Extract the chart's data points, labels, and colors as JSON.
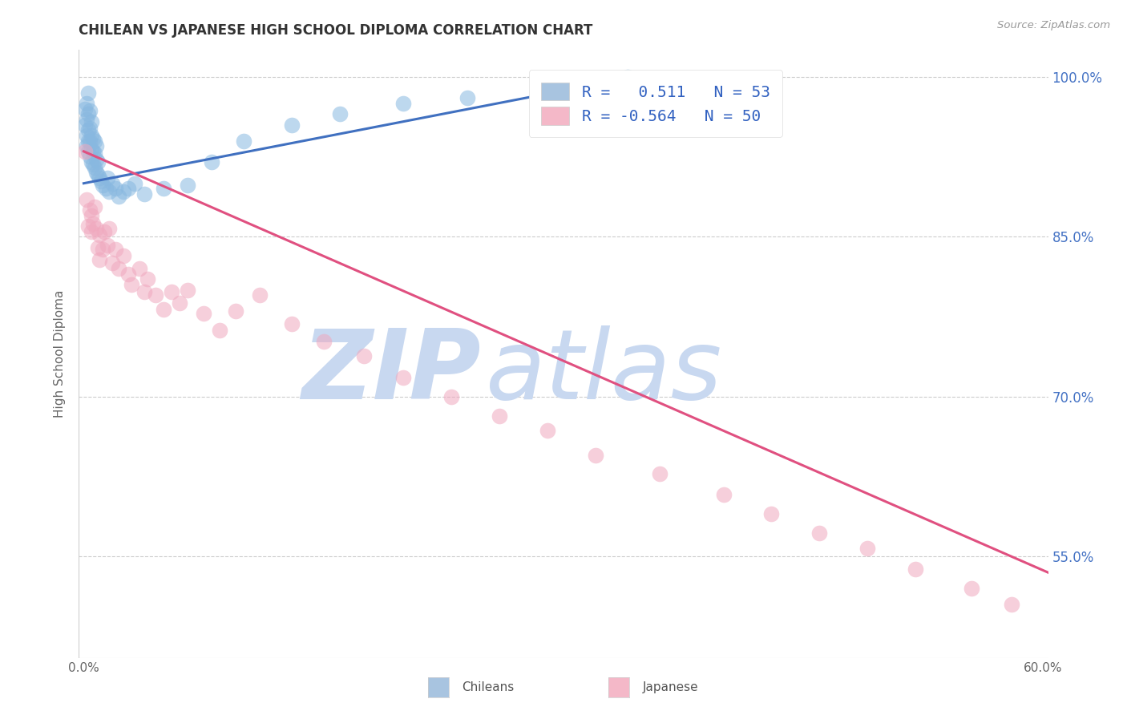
{
  "title": "CHILEAN VS JAPANESE HIGH SCHOOL DIPLOMA CORRELATION CHART",
  "source": "Source: ZipAtlas.com",
  "ylabel": "High School Diploma",
  "xlim": [
    -0.003,
    0.603
  ],
  "ylim": [
    0.455,
    1.025
  ],
  "xticks": [
    0.0,
    0.1,
    0.2,
    0.3,
    0.4,
    0.5,
    0.6
  ],
  "xticklabels": [
    "0.0%",
    "",
    "",
    "",
    "",
    "",
    "60.0%"
  ],
  "yticks": [
    0.55,
    0.7,
    0.85,
    1.0
  ],
  "yticklabels": [
    "55.0%",
    "70.0%",
    "85.0%",
    "100.0%"
  ],
  "legend_R1": "R =   0.511",
  "legend_N1": "N = 53",
  "legend_R2": "R = -0.564",
  "legend_N2": "N = 50",
  "legend_color1": "#a8c4e0",
  "legend_color2": "#f4b8c8",
  "legend_text_color": "#3060c0",
  "chilean_color": "#88b8e0",
  "japanese_color": "#f0a8be",
  "blue_line_color": "#4070c0",
  "pink_line_color": "#e05080",
  "watermark_zip": "ZIP",
  "watermark_atlas": "atlas",
  "watermark_color": "#c8d8f0",
  "chilean_x": [
    0.001,
    0.001,
    0.002,
    0.002,
    0.002,
    0.002,
    0.003,
    0.003,
    0.003,
    0.003,
    0.003,
    0.004,
    0.004,
    0.004,
    0.004,
    0.005,
    0.005,
    0.005,
    0.005,
    0.006,
    0.006,
    0.006,
    0.007,
    0.007,
    0.007,
    0.008,
    0.008,
    0.008,
    0.009,
    0.009,
    0.01,
    0.011,
    0.012,
    0.014,
    0.015,
    0.016,
    0.018,
    0.02,
    0.022,
    0.025,
    0.028,
    0.032,
    0.038,
    0.05,
    0.065,
    0.08,
    0.1,
    0.13,
    0.16,
    0.2,
    0.24,
    0.29,
    0.34
  ],
  "chilean_y": [
    0.955,
    0.97,
    0.935,
    0.945,
    0.96,
    0.975,
    0.93,
    0.94,
    0.95,
    0.965,
    0.985,
    0.925,
    0.94,
    0.952,
    0.968,
    0.92,
    0.932,
    0.945,
    0.958,
    0.918,
    0.93,
    0.942,
    0.915,
    0.928,
    0.94,
    0.91,
    0.922,
    0.935,
    0.908,
    0.92,
    0.905,
    0.902,
    0.898,
    0.895,
    0.905,
    0.892,
    0.9,
    0.895,
    0.888,
    0.892,
    0.895,
    0.9,
    0.89,
    0.895,
    0.898,
    0.92,
    0.94,
    0.955,
    0.965,
    0.975,
    0.98,
    0.992,
    1.0
  ],
  "japanese_x": [
    0.001,
    0.002,
    0.003,
    0.004,
    0.005,
    0.005,
    0.006,
    0.007,
    0.008,
    0.009,
    0.01,
    0.01,
    0.012,
    0.013,
    0.015,
    0.016,
    0.018,
    0.02,
    0.022,
    0.025,
    0.028,
    0.03,
    0.035,
    0.038,
    0.04,
    0.045,
    0.05,
    0.055,
    0.06,
    0.065,
    0.075,
    0.085,
    0.095,
    0.11,
    0.13,
    0.15,
    0.175,
    0.2,
    0.23,
    0.26,
    0.29,
    0.32,
    0.36,
    0.4,
    0.43,
    0.46,
    0.49,
    0.52,
    0.555,
    0.58
  ],
  "japanese_y": [
    0.93,
    0.885,
    0.86,
    0.875,
    0.855,
    0.87,
    0.862,
    0.878,
    0.858,
    0.84,
    0.828,
    0.852,
    0.838,
    0.855,
    0.842,
    0.858,
    0.825,
    0.838,
    0.82,
    0.832,
    0.815,
    0.805,
    0.82,
    0.798,
    0.81,
    0.795,
    0.782,
    0.798,
    0.788,
    0.8,
    0.778,
    0.762,
    0.78,
    0.795,
    0.768,
    0.752,
    0.738,
    0.718,
    0.7,
    0.682,
    0.668,
    0.645,
    0.628,
    0.608,
    0.59,
    0.572,
    0.558,
    0.538,
    0.52,
    0.505
  ],
  "blue_line_x": [
    0.0,
    0.345
  ],
  "blue_line_y": [
    0.9,
    1.0
  ],
  "pink_line_x": [
    0.0,
    0.603
  ],
  "pink_line_y": [
    0.93,
    0.535
  ]
}
